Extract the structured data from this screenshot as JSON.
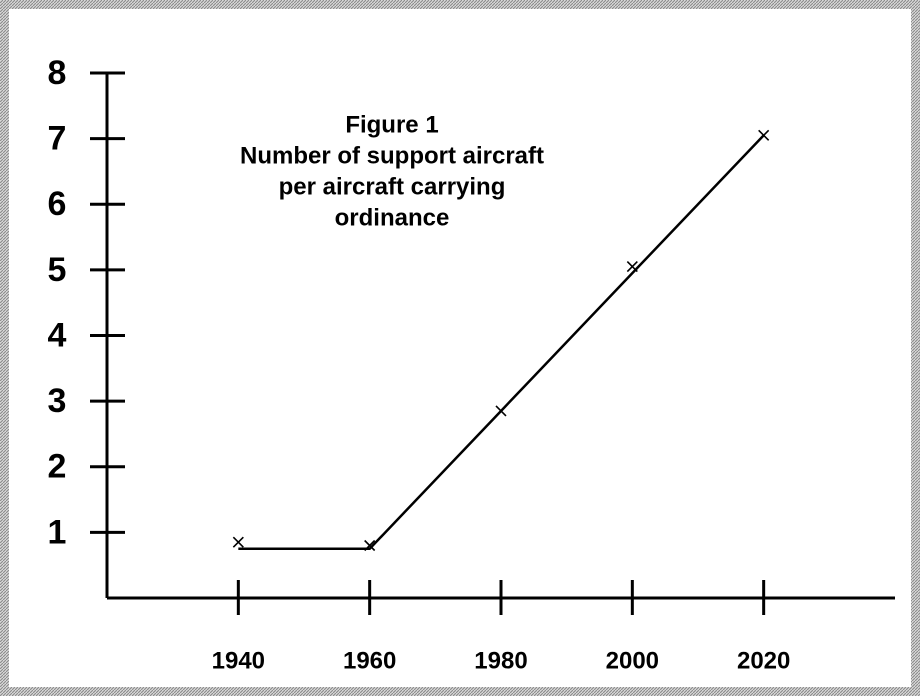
{
  "chart_data": {
    "type": "line",
    "title": [
      "Figure 1",
      "Number of support aircraft",
      "per aircraft carrying",
      "ordinance"
    ],
    "x": [
      1940,
      1960,
      1980,
      2000,
      2020
    ],
    "series": [
      {
        "style": "markers",
        "color": "#000000",
        "values": [
          0.85,
          0.8,
          2.85,
          5.05,
          7.05
        ]
      },
      {
        "style": "line",
        "color": "#000000",
        "values": [
          0.75,
          0.75,
          2.85,
          4.95,
          7.05
        ]
      }
    ],
    "xlim": [
      1920,
      2040
    ],
    "xticks": [
      1940,
      1960,
      1980,
      2000,
      2020
    ],
    "ylim": [
      0,
      8
    ],
    "yticks": [
      1,
      2,
      3,
      4,
      5,
      6,
      7,
      8
    ],
    "grid": false
  }
}
